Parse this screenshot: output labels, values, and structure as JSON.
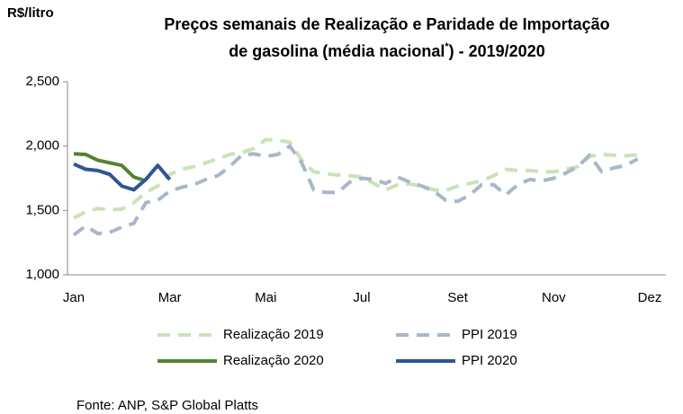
{
  "chart_data": {
    "type": "line",
    "title": [
      "Preços semanais de Realização e Paridade de Importação",
      "de gasolina (média nacional",
      "*",
      ") - 2019/2020"
    ],
    "y_label": "R$/litro",
    "source": "Fonte: ANP, S&P Global Platts",
    "categories": [
      "Jan",
      null,
      null,
      null,
      null,
      null,
      null,
      null,
      "Mar",
      null,
      null,
      null,
      null,
      null,
      null,
      null,
      "Mai",
      null,
      null,
      null,
      null,
      null,
      null,
      null,
      "Jul",
      null,
      null,
      null,
      null,
      null,
      null,
      null,
      "Set",
      null,
      null,
      null,
      null,
      null,
      null,
      null,
      "Nov",
      null,
      null,
      null,
      null,
      null,
      null,
      null,
      "Dez"
    ],
    "ylim": [
      1000,
      2500
    ],
    "yticks": [
      {
        "value": 1000,
        "label": "1,000"
      },
      {
        "value": 1500,
        "label": "1,500"
      },
      {
        "value": 2000,
        "label": "2,000"
      },
      {
        "value": 2500,
        "label": "2,500"
      }
    ],
    "grid": false,
    "series": [
      {
        "name": "Realização 2019",
        "color": "#c9e3b6",
        "dashed": true,
        "values": [
          1440,
          1490,
          1515,
          1505,
          1510,
          1560,
          1640,
          1690,
          1780,
          1820,
          1840,
          1870,
          1900,
          1935,
          1950,
          1980,
          2050,
          2045,
          2030,
          1890,
          1800,
          1785,
          1775,
          1770,
          1760,
          1710,
          1660,
          1700,
          1705,
          1690,
          1660,
          1655,
          1690,
          1710,
          1730,
          1770,
          1820,
          1810,
          1810,
          1800,
          1800,
          1820,
          1840,
          1920,
          1935,
          1930,
          1925,
          1930,
          null
        ]
      },
      {
        "name": "PPI 2019",
        "color": "#a9b7cb",
        "dashed": true,
        "values": [
          1310,
          1380,
          1320,
          1330,
          1370,
          1400,
          1560,
          1580,
          1650,
          1680,
          1700,
          1740,
          1770,
          1840,
          1930,
          1940,
          1920,
          1935,
          2000,
          1870,
          1660,
          1640,
          1640,
          1720,
          1750,
          1740,
          1710,
          1760,
          1720,
          1690,
          1650,
          1580,
          1570,
          1620,
          1700,
          1700,
          1620,
          1700,
          1740,
          1730,
          1750,
          1790,
          1840,
          1930,
          1800,
          1830,
          1850,
          1900,
          null
        ]
      },
      {
        "name": "Realização 2020",
        "color": "#548235",
        "dashed": false,
        "values": [
          1940,
          1935,
          1890,
          1870,
          1850,
          1760,
          1730,
          null,
          null,
          null,
          null,
          null,
          null,
          null,
          null,
          null,
          null,
          null,
          null,
          null,
          null,
          null,
          null,
          null,
          null,
          null,
          null,
          null,
          null,
          null,
          null,
          null,
          null,
          null,
          null,
          null,
          null,
          null,
          null,
          null,
          null,
          null,
          null,
          null,
          null,
          null,
          null,
          null,
          null
        ]
      },
      {
        "name": "PPI 2020",
        "color": "#2f5597",
        "dashed": false,
        "values": [
          1860,
          1820,
          1810,
          1780,
          1690,
          1660,
          1740,
          1850,
          1740,
          null,
          null,
          null,
          null,
          null,
          null,
          null,
          null,
          null,
          null,
          null,
          null,
          null,
          null,
          null,
          null,
          null,
          null,
          null,
          null,
          null,
          null,
          null,
          null,
          null,
          null,
          null,
          null,
          null,
          null,
          null,
          null,
          null,
          null,
          null,
          null,
          null,
          null,
          null,
          null
        ]
      }
    ]
  }
}
